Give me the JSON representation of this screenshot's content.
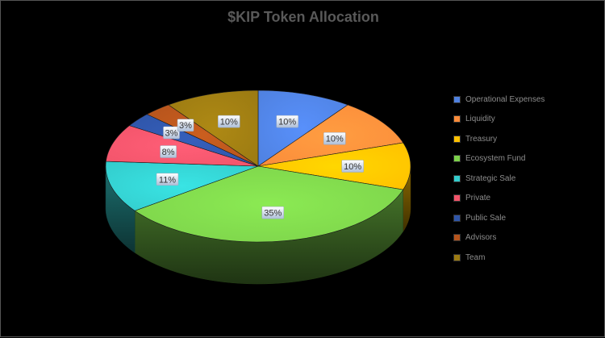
{
  "chart_data": {
    "type": "pie",
    "style": "3d",
    "title": "$KIP Token Allocation",
    "categories": [
      "Operational Expenses",
      "Liquidity",
      "Treasury",
      "Ecosystem Fund",
      "Strategic Sale",
      "Private",
      "Public Sale",
      "Advisors",
      "Team"
    ],
    "values": [
      10,
      10,
      10,
      35,
      11,
      8,
      3,
      3,
      10
    ],
    "labels": [
      "10%",
      "10%",
      "10%",
      "35%",
      "11%",
      "8%",
      "3%",
      "3%",
      "10%"
    ],
    "colors": [
      "#4f81e0",
      "#fb8c3a",
      "#ffc000",
      "#7cd14a",
      "#33cccc",
      "#f2546a",
      "#2f55a8",
      "#b5541c",
      "#9b7a12"
    ],
    "legend_position": "right"
  }
}
